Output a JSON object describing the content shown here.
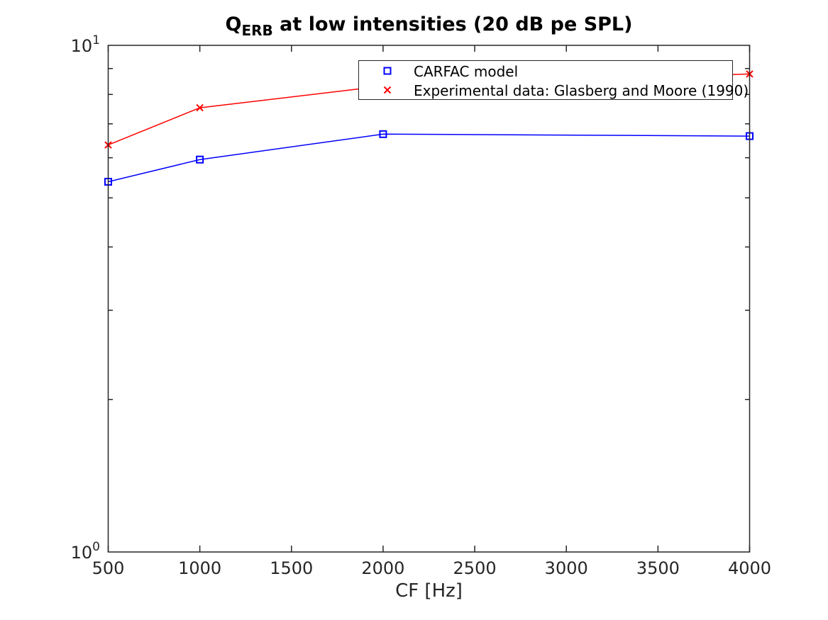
{
  "figure": {
    "background": "#ffffff",
    "axis_color": "#262626",
    "title_color": "#000000",
    "legend_border_color": "#262626"
  },
  "chart_data": {
    "type": "line",
    "title": "Q_ERB at low intensities (20 dB pe SPL)",
    "title_parts": {
      "prefix": "Q",
      "subscript": "ERB",
      "suffix": " at low intensities (20 dB pe SPL)"
    },
    "xlabel": "CF [Hz]",
    "ylabel": "",
    "x_scale": "linear",
    "y_scale": "log10",
    "xlim": [
      500,
      4000
    ],
    "ylim": [
      1,
      10
    ],
    "x_ticks": [
      500,
      1000,
      1500,
      2000,
      2500,
      3000,
      3500,
      4000
    ],
    "y_ticks": [
      {
        "value": 1,
        "base": "10",
        "exp": "0"
      },
      {
        "value": 10,
        "base": "10",
        "exp": "1"
      }
    ],
    "y_minor_ticks": [
      2,
      3,
      4,
      5,
      6,
      7,
      8,
      9
    ],
    "grid": false,
    "legend_position": "top-inside",
    "series": [
      {
        "name": "CARFAC model",
        "color": "#0000ff",
        "marker": "square",
        "x": [
          500,
          1000,
          2000,
          4000
        ],
        "y": [
          5.38,
          5.95,
          6.68,
          6.62
        ]
      },
      {
        "name": "Experimental data: Glasberg and Moore (1990)",
        "color": "#ff0000",
        "marker": "x",
        "x": [
          500,
          1000,
          2000,
          4000
        ],
        "y": [
          6.36,
          7.53,
          8.31,
          8.78
        ]
      }
    ]
  }
}
